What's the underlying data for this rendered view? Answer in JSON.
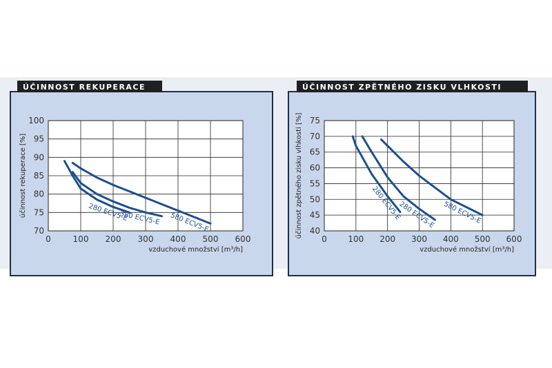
{
  "chart_data": [
    {
      "type": "line",
      "title": "ÚČINNOST REKUPERACE",
      "y_label": "účinnost rekuperace [%]",
      "x_label": "vzduchové množství [m³/h]",
      "xlim": [
        0,
        600
      ],
      "xticks": [
        0,
        100,
        200,
        300,
        400,
        500,
        600
      ],
      "ylim": [
        70,
        100
      ],
      "yticks": [
        70,
        75,
        80,
        85,
        90,
        95,
        100
      ],
      "grid": true,
      "series": [
        {
          "name": "280 ECV5-E",
          "color": "#1c4f8f",
          "x": [
            50,
            75,
            100,
            150,
            200,
            250
          ],
          "values": [
            89,
            85,
            81.5,
            78.5,
            76.5,
            75
          ]
        },
        {
          "name": "380 ECV5-E",
          "color": "#1c4f8f",
          "x": [
            75,
            100,
            150,
            200,
            250,
            300,
            350
          ],
          "values": [
            86,
            83,
            80,
            78,
            76.3,
            75,
            74
          ]
        },
        {
          "name": "580 ECV5-E",
          "color": "#1c4f8f",
          "x": [
            75,
            100,
            150,
            200,
            300,
            400,
            500
          ],
          "values": [
            88.5,
            87,
            84.5,
            82.5,
            79,
            75.5,
            72
          ]
        }
      ]
    },
    {
      "type": "line",
      "title": "ÚČINNOST ZPĚTNÉHO ZISKU VLHKOSTI",
      "y_label": "účinnost zpětného zisku vlhkosti [%]",
      "x_label": "vzduchové množství [m³/h]",
      "xlim": [
        0,
        600
      ],
      "xticks": [
        0,
        100,
        200,
        300,
        400,
        500,
        600
      ],
      "ylim": [
        40,
        75
      ],
      "yticks": [
        40,
        45,
        50,
        55,
        60,
        65,
        70,
        75
      ],
      "grid": true,
      "series": [
        {
          "name": "280 ECV5-E",
          "color": "#1c4f8f",
          "x": [
            90,
            100,
            150,
            200,
            240
          ],
          "values": [
            70,
            67,
            58,
            51,
            46
          ]
        },
        {
          "name": "280 ECV5-E",
          "color": "#1c4f8f",
          "x": [
            120,
            150,
            200,
            250,
            300,
            350
          ],
          "values": [
            70,
            65,
            57,
            51,
            47,
            43.5
          ]
        },
        {
          "name": "580 ECV5-E",
          "color": "#1c4f8f",
          "x": [
            180,
            250,
            300,
            400,
            500
          ],
          "values": [
            69,
            62,
            57.5,
            50,
            45
          ]
        }
      ]
    }
  ]
}
